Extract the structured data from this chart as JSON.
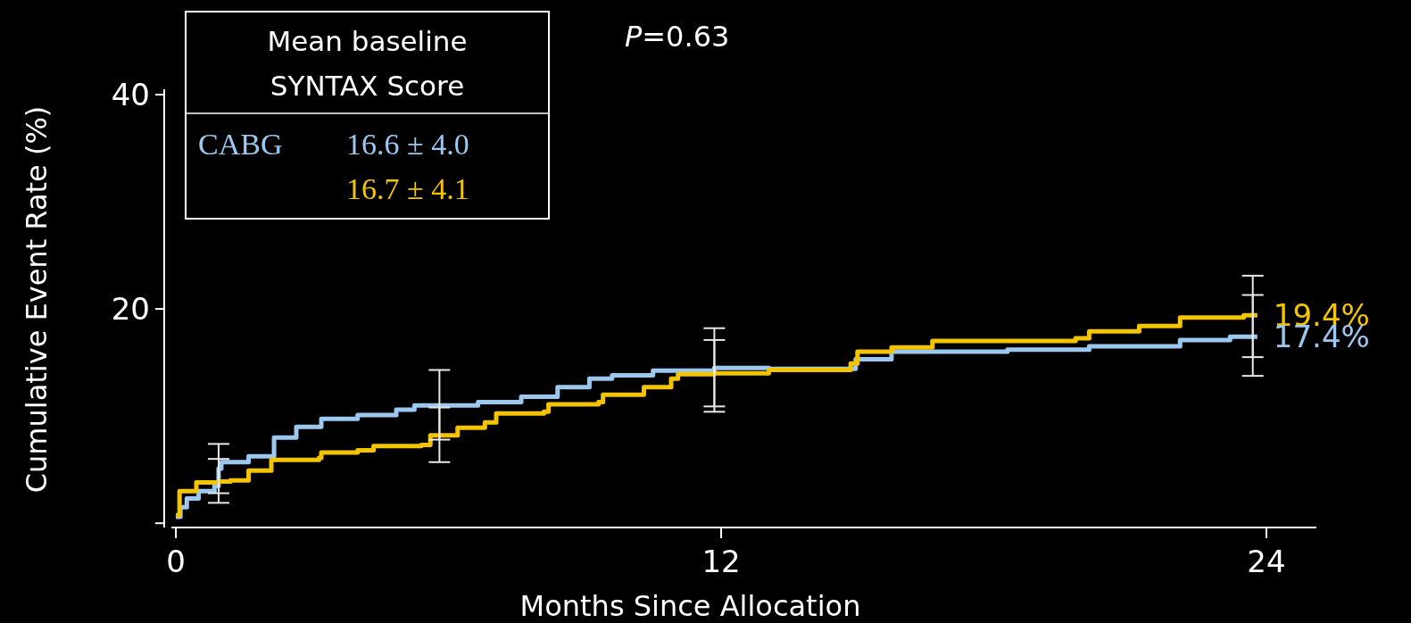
{
  "chart_data": {
    "type": "step",
    "xlabel": "Months Since Allocation",
    "ylabel": "Cumulative Event Rate (%)",
    "legend_title": "Mean baseline SYNTAX Score",
    "legend": "top left",
    "xlim": [
      -0.1,
      25.1
    ],
    "xticks": [
      0,
      12,
      24
    ],
    "ylim": [
      -0.4,
      40.5
    ],
    "yticks": [
      {
        "value": 0,
        "label": null
      },
      20,
      40
    ],
    "grid": false,
    "annotations": [
      "P=0.63",
      "16.6 ± 4.0",
      "16.7 ± 4.1",
      {
        "text": "19.4%",
        "x": 23.8,
        "y": 19.4
      },
      {
        "text": "17.4%",
        "x": 23.8,
        "y": 17.4
      }
    ],
    "series": [
      {
        "name": "CABG",
        "color": "#9cc8f0",
        "x": [
          0,
          0.1,
          0.24,
          0.5,
          0.85,
          0.94,
          1.0,
          1.6,
          2.16,
          2.65,
          3.2,
          4.0,
          4.85,
          5.25,
          5.8,
          6.65,
          7.6,
          8.4,
          9.1,
          9.6,
          10.5,
          11.85,
          13.05,
          14.96,
          15.75,
          18.3,
          20.1,
          22.1,
          23.2,
          23.7,
          23.8
        ],
        "values": [
          0.6,
          1.5,
          2.3,
          3.0,
          3.5,
          5.1,
          5.7,
          6.25,
          8,
          9,
          9.75,
          10.1,
          10.6,
          11,
          11,
          11.3,
          11.8,
          12.7,
          13.5,
          13.8,
          14.25,
          14.5,
          14.4,
          15.3,
          16.0,
          16.2,
          16.5,
          17.1,
          17.4,
          17.4,
          17.4
        ],
        "errors": [
          null,
          null,
          null,
          null,
          null,
          [
            2.8,
            7.4
          ],
          null,
          null,
          null,
          null,
          null,
          null,
          null,
          null,
          [
            7.8,
            14.3
          ],
          null,
          null,
          null,
          null,
          null,
          null,
          [
            10.9,
            18.2
          ],
          null,
          null,
          null,
          null,
          null,
          null,
          null,
          [
            13.75,
            21.3
          ],
          null
        ]
      },
      {
        "color": "#f5c400",
        "x": [
          0,
          0.08,
          0.45,
          0.94,
          1.2,
          1.6,
          2.1,
          3.15,
          3.2,
          4.0,
          4.35,
          5.4,
          5.6,
          5.8,
          6.2,
          6.8,
          7.05,
          8.1,
          8.2,
          9.3,
          9.4,
          10.3,
          10.9,
          11.05,
          11.85,
          13.05,
          14.85,
          15.0,
          15.75,
          16.65,
          19.8,
          20.1,
          21.2,
          22.1,
          23.5,
          23.7,
          23.8
        ],
        "values": [
          0.75,
          3.0,
          3.8,
          3.9,
          4.0,
          4.9,
          5.9,
          6.1,
          6.6,
          6.8,
          7.2,
          7.3,
          8.2,
          8.2,
          8.9,
          9.4,
          10.25,
          10.4,
          11.1,
          11.3,
          12,
          12.7,
          13.5,
          13.9,
          14.0,
          14.3,
          14.9,
          16.0,
          16.4,
          17.0,
          17.25,
          17.9,
          18.4,
          19.2,
          19.4,
          19.4,
          19.4
        ],
        "errors": [
          null,
          null,
          null,
          [
            1.9,
            6.0
          ],
          null,
          null,
          null,
          null,
          null,
          null,
          null,
          null,
          null,
          [
            5.7,
            10.8
          ],
          null,
          null,
          null,
          null,
          null,
          null,
          null,
          null,
          null,
          null,
          [
            10.4,
            17.1
          ],
          null,
          null,
          null,
          null,
          null,
          null,
          null,
          null,
          null,
          null,
          [
            15.5,
            23.1
          ],
          null
        ]
      }
    ]
  }
}
